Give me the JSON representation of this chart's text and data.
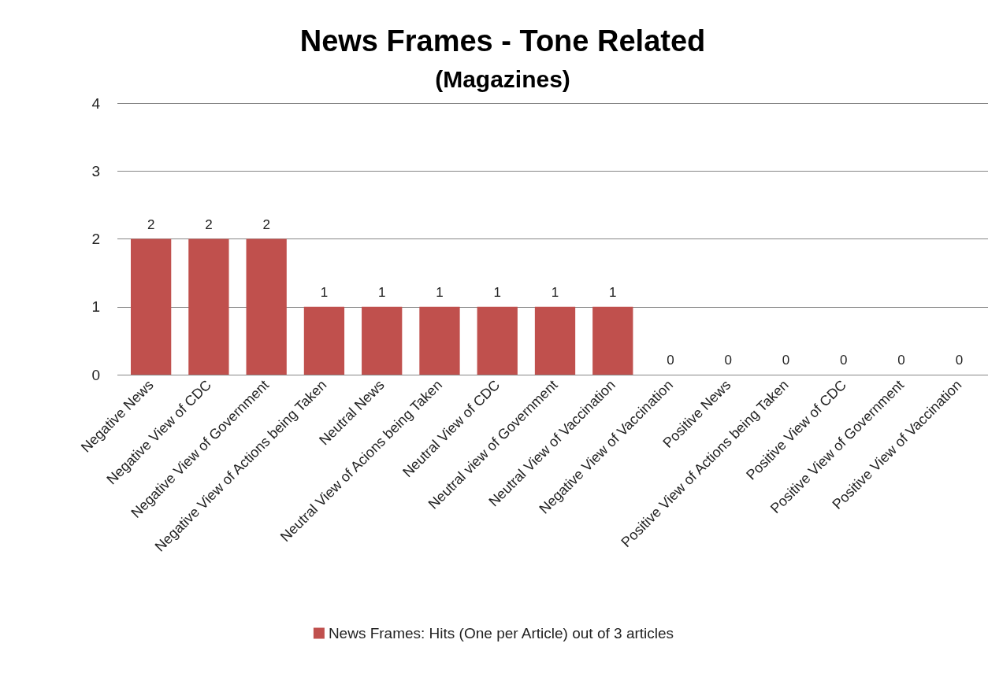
{
  "chart_data": {
    "type": "bar",
    "title": "News Frames - Tone Related",
    "subtitle": "(Magazines)",
    "categories": [
      "Negative News",
      "Negative View of CDC",
      "Negative View of Government",
      "Negative View of Actions being Taken",
      "Neutral News",
      "Neutral View of Acions being Taken",
      "Neutral View of CDC",
      "Neutral view of Government",
      "Neutral View of Vaccination",
      "Negative View of Vaccination",
      "Positive News",
      "Positive View of Actions being Taken",
      "Positive View of CDC",
      "Positive View of Government",
      "Positive View of Vaccination"
    ],
    "series": [
      {
        "name": "News Frames: Hits (One per Article) out of 3 articles",
        "color": "#c0504d",
        "values": [
          2,
          2,
          2,
          1,
          1,
          1,
          1,
          1,
          1,
          0,
          0,
          0,
          0,
          0,
          0
        ]
      }
    ],
    "ylim": [
      0,
      4
    ],
    "yticks": [
      0,
      1,
      2,
      3,
      4
    ],
    "grid": "y",
    "legend": "bottom",
    "data_labels": true
  }
}
